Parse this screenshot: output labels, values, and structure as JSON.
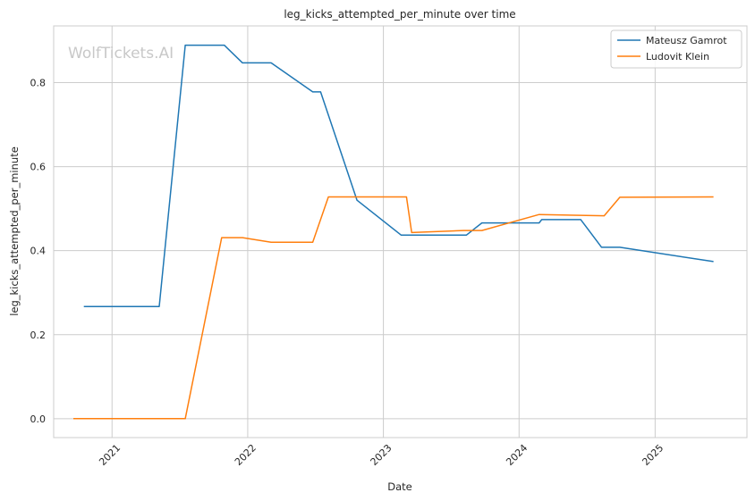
{
  "watermark": "WolfTickets.AI",
  "chart_data": {
    "type": "line",
    "title": "leg_kicks_attempted_per_minute over time",
    "xlabel": "Date",
    "ylabel": "leg_kicks_attempted_per_minute",
    "x_ticks": [
      "2021",
      "2022",
      "2023",
      "2024",
      "2025"
    ],
    "y_ticks": [
      "0.0",
      "0.2",
      "0.4",
      "0.6",
      "0.8"
    ],
    "ylim": [
      -0.045,
      0.935
    ],
    "xlim": [
      "2020-07-28",
      "2025-09-05"
    ],
    "grid": true,
    "legend_position": "top-right",
    "series": [
      {
        "name": "Mateusz Gamrot",
        "color": "#1f77b4",
        "points": [
          [
            "2020-10-17",
            0.267
          ],
          [
            "2021-05-08",
            0.267
          ],
          [
            "2021-07-17",
            0.889
          ],
          [
            "2021-10-30",
            0.889
          ],
          [
            "2021-12-18",
            0.847
          ],
          [
            "2022-03-05",
            0.847
          ],
          [
            "2022-06-25",
            0.778
          ],
          [
            "2022-07-16",
            0.778
          ],
          [
            "2022-10-22",
            0.52
          ],
          [
            "2023-02-18",
            0.437
          ],
          [
            "2023-08-12",
            0.437
          ],
          [
            "2023-09-23",
            0.466
          ],
          [
            "2024-02-24",
            0.466
          ],
          [
            "2024-03-02",
            0.474
          ],
          [
            "2024-06-15",
            0.474
          ],
          [
            "2024-08-10",
            0.408
          ],
          [
            "2024-09-28",
            0.408
          ],
          [
            "2025-06-07",
            0.374
          ]
        ]
      },
      {
        "name": "Ludovit Klein",
        "color": "#ff7f0e",
        "points": [
          [
            "2020-09-19",
            0.0
          ],
          [
            "2021-07-17",
            0.0
          ],
          [
            "2021-10-23",
            0.431
          ],
          [
            "2021-12-18",
            0.431
          ],
          [
            "2022-03-05",
            0.42
          ],
          [
            "2022-06-25",
            0.42
          ],
          [
            "2022-08-06",
            0.528
          ],
          [
            "2023-03-04",
            0.528
          ],
          [
            "2023-03-18",
            0.443
          ],
          [
            "2023-08-05",
            0.448
          ],
          [
            "2023-09-23",
            0.448
          ],
          [
            "2024-02-24",
            0.486
          ],
          [
            "2024-08-17",
            0.483
          ],
          [
            "2024-09-28",
            0.527
          ],
          [
            "2025-06-07",
            0.528
          ]
        ]
      }
    ]
  }
}
